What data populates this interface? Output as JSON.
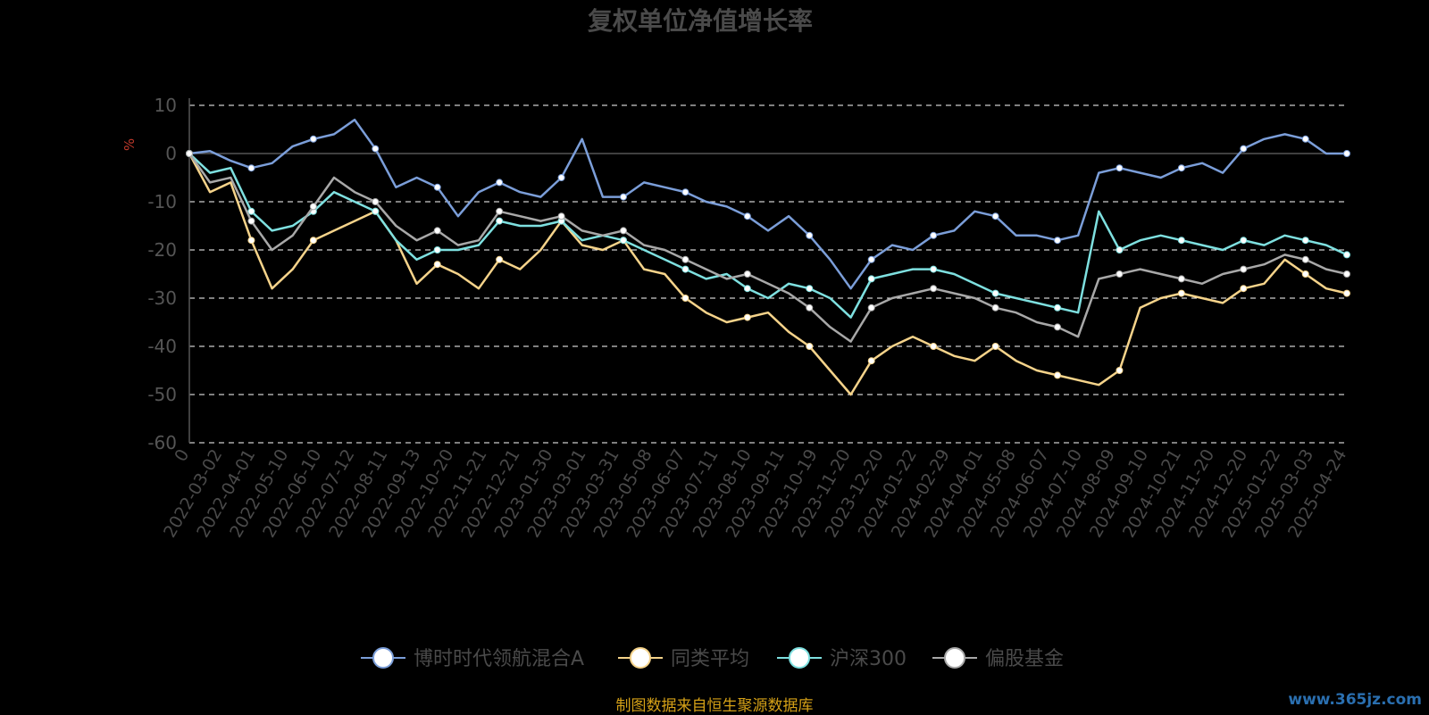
{
  "source_note": "制图数据来自恒生聚源数据库",
  "watermark": "www.365jz.com",
  "chart_data": {
    "type": "line",
    "title": "复权单位净值增长率",
    "ylabel": "%",
    "ylim": [
      -60,
      10
    ],
    "yticks": [
      10,
      0,
      -10,
      -20,
      -30,
      -40,
      -50,
      -60
    ],
    "grid": true,
    "legend_position": "bottom-center",
    "x_tick_labels": [
      "0",
      "2022-03-02",
      "2022-04-01",
      "2022-05-10",
      "2022-06-10",
      "2022-07-12",
      "2022-08-11",
      "2022-09-13",
      "2022-10-20",
      "2022-11-21",
      "2022-12-21",
      "2023-01-30",
      "2023-03-01",
      "2023-03-31",
      "2023-05-08",
      "2023-06-07",
      "2023-07-11",
      "2023-08-10",
      "2023-09-11",
      "2023-10-19",
      "2023-11-20",
      "2023-12-20",
      "2024-01-22",
      "2024-02-29",
      "2024-04-01",
      "2024-05-08",
      "2024-06-07",
      "2024-07-10",
      "2024-08-09",
      "2024-09-10",
      "2024-10-21",
      "2024-11-20",
      "2024-12-20",
      "2025-01-22",
      "2025-03-03",
      "2025-04-24"
    ],
    "series": [
      {
        "name": "博时时代领航混合A",
        "color": "#7b9ed9",
        "values": [
          0,
          0.5,
          -1.5,
          -3,
          -2,
          1.5,
          3,
          4,
          7,
          1,
          -7,
          -5,
          -7,
          -13,
          -8,
          -6,
          -8,
          -9,
          -5,
          3,
          -9,
          -9,
          -6,
          -7,
          -8,
          -10,
          -11,
          -13,
          -16,
          -13,
          -17,
          -22,
          -28,
          -22,
          -19,
          -20,
          -17,
          -16,
          -12,
          -13,
          -17,
          -17,
          -18,
          -17,
          -4,
          -3,
          -4,
          -5,
          -3,
          -2,
          -4,
          1,
          3,
          4,
          3,
          0,
          0
        ]
      },
      {
        "name": "同类平均",
        "color": "#f5d38a",
        "values": [
          0,
          -8,
          -6,
          -18,
          -28,
          -24,
          -18,
          -16,
          -14,
          -12,
          -18,
          -27,
          -23,
          -25,
          -28,
          -22,
          -24,
          -20,
          -14,
          -19,
          -20,
          -18,
          -24,
          -25,
          -30,
          -33,
          -35,
          -34,
          -33,
          -37,
          -40,
          -45,
          -50,
          -43,
          -40,
          -38,
          -40,
          -42,
          -43,
          -40,
          -43,
          -45,
          -46,
          -47,
          -48,
          -45,
          -32,
          -30,
          -29,
          -30,
          -31,
          -28,
          -27,
          -22,
          -25,
          -28,
          -29
        ]
      },
      {
        "name": "沪深300",
        "color": "#7ee0e0",
        "values": [
          0,
          -4,
          -3,
          -12,
          -16,
          -15,
          -12,
          -8,
          -10,
          -12,
          -18,
          -22,
          -20,
          -20,
          -19,
          -14,
          -15,
          -15,
          -14,
          -18,
          -17,
          -18,
          -20,
          -22,
          -24,
          -26,
          -25,
          -28,
          -30,
          -27,
          -28,
          -30,
          -34,
          -26,
          -25,
          -24,
          -24,
          -25,
          -27,
          -29,
          -30,
          -31,
          -32,
          -33,
          -12,
          -20,
          -18,
          -17,
          -18,
          -19,
          -20,
          -18,
          -19,
          -17,
          -18,
          -19,
          -21
        ]
      },
      {
        "name": "偏股基金",
        "color": "#a8a8a8",
        "values": [
          0,
          -6,
          -5,
          -14,
          -20,
          -17,
          -11,
          -5,
          -8,
          -10,
          -15,
          -18,
          -16,
          -19,
          -18,
          -12,
          -13,
          -14,
          -13,
          -16,
          -17,
          -16,
          -19,
          -20,
          -22,
          -24,
          -26,
          -25,
          -27,
          -29,
          -32,
          -36,
          -39,
          -32,
          -30,
          -29,
          -28,
          -29,
          -30,
          -32,
          -33,
          -35,
          -36,
          -38,
          -26,
          -25,
          -24,
          -25,
          -26,
          -27,
          -25,
          -24,
          -23,
          -21,
          -22,
          -24,
          -25
        ]
      }
    ]
  }
}
